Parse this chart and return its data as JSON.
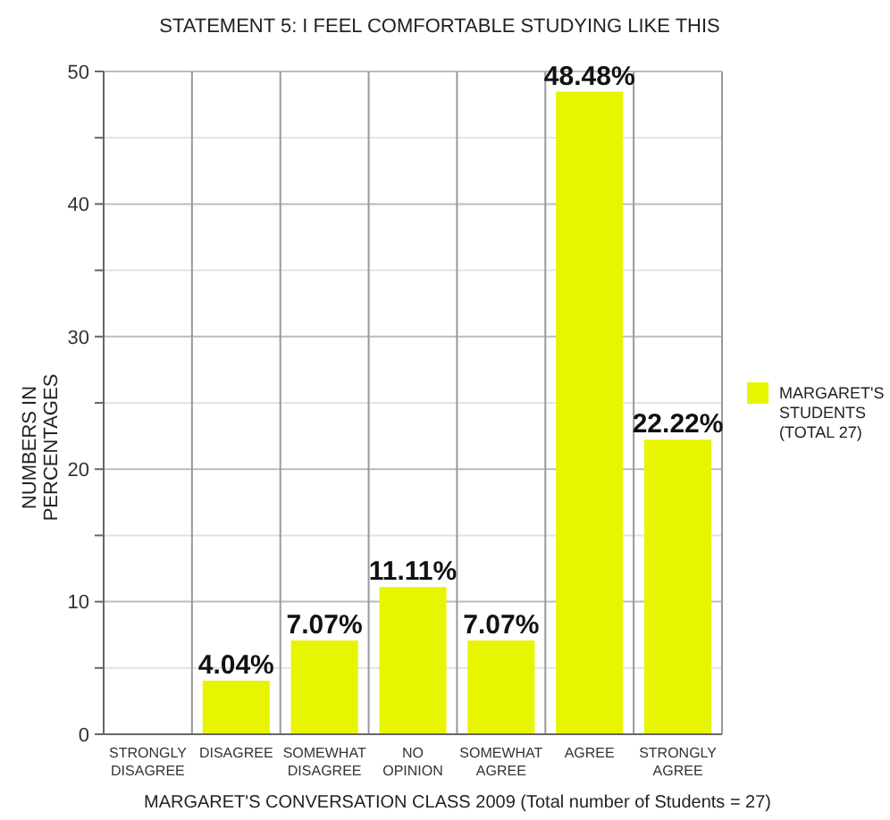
{
  "chart_data": {
    "type": "bar",
    "title": "STATEMENT 5: I FEEL COMFORTABLE STUDYING LIKE THIS",
    "xlabel": "MARGARET'S CONVERSATION CLASS 2009 (Total number of Students = 27)",
    "ylabel": "NUMBERS IN PERCENTAGES",
    "categories": [
      "STRONGLY DISAGREE",
      "DISAGREE",
      "SOMEWHAT DISAGREE",
      "NO OPINION",
      "SOMEWHAT AGREE",
      "AGREE",
      "STRONGLY AGREE"
    ],
    "series": [
      {
        "name": "MARGARET'S STUDENTS (TOTAL 27)",
        "color": "#e8f500",
        "values": [
          0,
          4.04,
          7.07,
          11.11,
          7.07,
          48.48,
          22.22
        ],
        "value_labels": [
          null,
          "4.04%",
          "7.07%",
          "11.11%",
          "7.07%",
          "48.48%",
          "22.22%"
        ]
      }
    ],
    "ylim": [
      0,
      50
    ],
    "yticks": [
      0,
      {
        "value": 5,
        "label": null
      },
      10,
      {
        "value": 15,
        "label": null
      },
      20,
      {
        "value": 25,
        "label": null
      },
      30,
      {
        "value": 35,
        "label": null
      },
      40,
      {
        "value": 45,
        "label": null
      },
      50
    ],
    "grid": true,
    "legend": "right"
  }
}
